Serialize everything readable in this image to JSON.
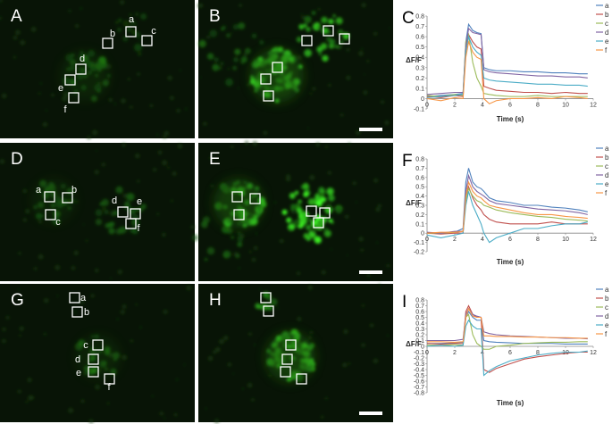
{
  "panels": [
    {
      "letter": "A",
      "rois": [
        "a",
        "b",
        "c",
        "d",
        "e",
        "f"
      ]
    },
    {
      "letter": "B"
    },
    {
      "letter": "D",
      "rois": [
        "a",
        "b",
        "c",
        "d",
        "e",
        "f"
      ]
    },
    {
      "letter": "E"
    },
    {
      "letter": "G",
      "rois": [
        "a",
        "b",
        "c",
        "d",
        "e",
        "f"
      ]
    },
    {
      "letter": "H"
    }
  ],
  "chart_data": [
    {
      "type": "line",
      "label": "C",
      "x_label": "Time (s)",
      "y_label": "ΔF/F",
      "x": [
        0,
        1,
        2,
        2.6,
        2.8,
        3,
        3.3,
        3.6,
        3.9,
        4.1,
        4.5,
        5,
        6,
        7,
        8,
        9,
        10,
        11,
        11.6
      ],
      "xlim": [
        0,
        12
      ],
      "xticks": [
        0,
        2,
        4,
        6,
        8,
        10,
        12
      ],
      "ylim": [
        -0.1,
        0.8
      ],
      "yticks": [
        -0.1,
        0,
        0.1,
        0.2,
        0.3,
        0.4,
        0.5,
        0.6,
        0.7,
        0.8
      ],
      "series": [
        {
          "name": "a",
          "color": "#4f81bd",
          "values": [
            0.02,
            0.03,
            0.04,
            0.05,
            0.55,
            0.72,
            0.66,
            0.64,
            0.63,
            0.3,
            0.28,
            0.27,
            0.27,
            0.26,
            0.26,
            0.25,
            0.25,
            0.24,
            0.24
          ]
        },
        {
          "name": "b",
          "color": "#c0504d",
          "values": [
            0.02,
            0.01,
            0.03,
            0.02,
            0.5,
            0.62,
            0.55,
            0.5,
            0.48,
            0.12,
            0.1,
            0.08,
            0.07,
            0.06,
            0.06,
            0.05,
            0.06,
            0.05,
            0.05
          ]
        },
        {
          "name": "c",
          "color": "#9bbb59",
          "values": [
            0.03,
            0.02,
            0.04,
            0.03,
            0.55,
            0.62,
            0.35,
            0.2,
            0.12,
            0.05,
            0.04,
            0.03,
            0.02,
            0.02,
            0.03,
            0.02,
            0.02,
            0.02,
            0.02
          ]
        },
        {
          "name": "d",
          "color": "#8064a2",
          "values": [
            0.04,
            0.05,
            0.06,
            0.06,
            0.5,
            0.68,
            0.64,
            0.63,
            0.62,
            0.28,
            0.26,
            0.25,
            0.24,
            0.23,
            0.22,
            0.22,
            0.21,
            0.21,
            0.2
          ]
        },
        {
          "name": "e",
          "color": "#4bacc6",
          "values": [
            0.01,
            0.02,
            0.03,
            0.04,
            0.45,
            0.6,
            0.5,
            0.45,
            0.42,
            0.2,
            0.18,
            0.17,
            0.16,
            0.15,
            0.14,
            0.14,
            0.13,
            0.13,
            0.12
          ]
        },
        {
          "name": "f",
          "color": "#f79646",
          "values": [
            0,
            -0.02,
            0.01,
            0,
            0.4,
            0.55,
            0.45,
            0.4,
            0.38,
            0,
            -0.05,
            -0.02,
            0,
            0,
            0.01,
            0,
            0.02,
            0.01,
            0
          ]
        }
      ]
    },
    {
      "type": "line",
      "label": "F",
      "x_label": "Time (s)",
      "y_label": "ΔF/F",
      "x": [
        0,
        1,
        2,
        2.6,
        2.8,
        3,
        3.3,
        3.6,
        3.9,
        4.1,
        4.5,
        5,
        6,
        7,
        8,
        9,
        10,
        11,
        11.6
      ],
      "xlim": [
        0,
        12
      ],
      "xticks": [
        0,
        2,
        4,
        6,
        8,
        10,
        12
      ],
      "ylim": [
        -0.2,
        0.8
      ],
      "yticks": [
        -0.2,
        -0.1,
        0,
        0.1,
        0.2,
        0.3,
        0.4,
        0.5,
        0.6,
        0.7,
        0.8
      ],
      "series": [
        {
          "name": "a",
          "color": "#4f81bd",
          "values": [
            0,
            0,
            0.01,
            0.05,
            0.55,
            0.7,
            0.55,
            0.5,
            0.48,
            0.45,
            0.38,
            0.35,
            0.33,
            0.3,
            0.3,
            0.28,
            0.27,
            0.25,
            0.23
          ]
        },
        {
          "name": "b",
          "color": "#c0504d",
          "values": [
            0,
            -0.01,
            0,
            0,
            0.4,
            0.5,
            0.38,
            0.3,
            0.25,
            0.2,
            0.15,
            0.12,
            0.1,
            0.1,
            0.1,
            0.12,
            0.1,
            0.1,
            0.1
          ]
        },
        {
          "name": "c",
          "color": "#9bbb59",
          "values": [
            0,
            0,
            0.01,
            0.02,
            0.35,
            0.48,
            0.4,
            0.35,
            0.33,
            0.3,
            0.28,
            0.25,
            0.22,
            0.2,
            0.18,
            0.17,
            0.15,
            0.14,
            0.13
          ]
        },
        {
          "name": "d",
          "color": "#8064a2",
          "values": [
            0.01,
            0,
            0.02,
            0.02,
            0.45,
            0.62,
            0.5,
            0.45,
            0.42,
            0.4,
            0.35,
            0.32,
            0.3,
            0.28,
            0.26,
            0.25,
            0.24,
            0.22,
            0.2
          ]
        },
        {
          "name": "e",
          "color": "#4bacc6",
          "values": [
            -0.02,
            -0.05,
            -0.02,
            0,
            0.3,
            0.45,
            0.3,
            0.2,
            0.1,
            0,
            -0.1,
            -0.05,
            0,
            0.05,
            0.05,
            0.08,
            0.1,
            0.1,
            0.12
          ]
        },
        {
          "name": "f",
          "color": "#f79646",
          "values": [
            0,
            0.01,
            0.01,
            0.02,
            0.4,
            0.55,
            0.45,
            0.4,
            0.38,
            0.35,
            0.3,
            0.28,
            0.25,
            0.22,
            0.2,
            0.2,
            0.18,
            0.17,
            0.16
          ]
        }
      ]
    },
    {
      "type": "line",
      "label": "I",
      "x_label": "Time (s)",
      "y_label": "ΔF/F",
      "x": [
        0,
        1,
        2,
        2.6,
        2.8,
        3,
        3.3,
        3.6,
        3.9,
        4.1,
        4.5,
        5,
        6,
        7,
        8,
        9,
        10,
        11,
        11.6
      ],
      "xlim": [
        0,
        12
      ],
      "xticks": [
        0,
        2,
        4,
        6,
        8,
        10,
        12
      ],
      "ylim": [
        -0.8,
        0.8
      ],
      "yticks": [
        -0.8,
        -0.7,
        -0.6,
        -0.5,
        -0.4,
        -0.3,
        -0.2,
        -0.1,
        0,
        0.1,
        0.2,
        0.3,
        0.4,
        0.5,
        0.6,
        0.7,
        0.8
      ],
      "series": [
        {
          "name": "a",
          "color": "#4f81bd",
          "values": [
            0.05,
            0.05,
            0.06,
            0.07,
            0.5,
            0.6,
            0.5,
            0.45,
            0.45,
            0.1,
            0.08,
            0.07,
            0.06,
            0.05,
            0.05,
            0.05,
            0.04,
            0.04,
            0.04
          ]
        },
        {
          "name": "b",
          "color": "#c0504d",
          "values": [
            0.05,
            0.04,
            0.05,
            0.05,
            0.6,
            0.7,
            0.55,
            0.5,
            0.5,
            -0.4,
            -0.45,
            -0.38,
            -0.3,
            -0.22,
            -0.18,
            -0.15,
            -0.12,
            -0.1,
            -0.1
          ]
        },
        {
          "name": "c",
          "color": "#9bbb59",
          "values": [
            0.02,
            0.02,
            0.03,
            0.02,
            0.5,
            0.55,
            0.2,
            0.05,
            0,
            -0.05,
            -0.05,
            0,
            0.02,
            0.05,
            0.06,
            0.07,
            0.07,
            0.08,
            0.08
          ]
        },
        {
          "name": "d",
          "color": "#8064a2",
          "values": [
            0.1,
            0.1,
            0.1,
            0.12,
            0.55,
            0.65,
            0.55,
            0.52,
            0.5,
            0.25,
            0.22,
            0.2,
            0.18,
            0.17,
            0.16,
            0.15,
            0.14,
            0.14,
            0.13
          ]
        },
        {
          "name": "e",
          "color": "#4bacc6",
          "values": [
            0,
            0.02,
            0,
            0.02,
            0.35,
            0.45,
            0.35,
            0.3,
            0.3,
            -0.5,
            -0.42,
            -0.35,
            -0.25,
            -0.2,
            -0.15,
            -0.12,
            -0.1,
            -0.1,
            -0.08
          ]
        },
        {
          "name": "f",
          "color": "#f79646",
          "values": [
            0.08,
            0.08,
            0.07,
            0.08,
            0.5,
            0.65,
            0.52,
            0.5,
            0.5,
            0.18,
            0.18,
            0.17,
            0.17,
            0.16,
            0.16,
            0.15,
            0.15,
            0.14,
            0.14
          ]
        }
      ]
    }
  ]
}
